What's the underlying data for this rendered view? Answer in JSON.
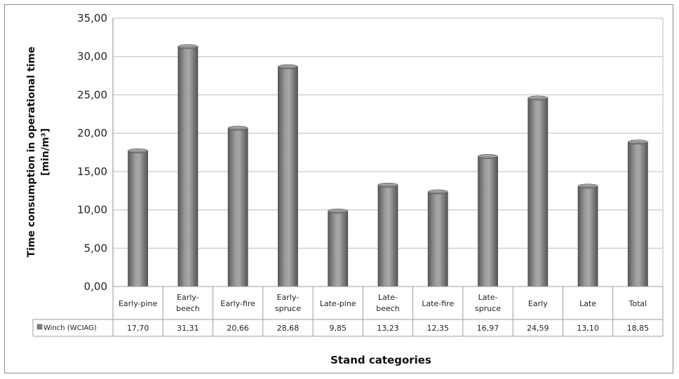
{
  "chart_data": {
    "type": "bar",
    "categories": [
      [
        "Early-pine"
      ],
      [
        "Early-",
        "beech"
      ],
      [
        "Early-fire"
      ],
      [
        "Early-",
        "spruce"
      ],
      [
        "Late-pine"
      ],
      [
        "Late-",
        "beech"
      ],
      [
        "Late-fire"
      ],
      [
        "Late-",
        "spruce"
      ],
      [
        "Early"
      ],
      [
        "Late"
      ],
      [
        "Total"
      ]
    ],
    "series": [
      {
        "name": "Winch (WCIAG)",
        "values": [
          17.7,
          31.31,
          20.66,
          28.68,
          9.85,
          13.23,
          12.35,
          16.97,
          24.59,
          13.1,
          18.85
        ],
        "labels": [
          "17,70",
          "31,31",
          "20,66",
          "28,68",
          "9,85",
          "13,23",
          "12,35",
          "16,97",
          "24,59",
          "13,10",
          "18,85"
        ]
      }
    ],
    "yticks": [
      "0,00",
      "5,00",
      "10,00",
      "15,00",
      "20,00",
      "25,00",
      "30,00",
      "35,00"
    ],
    "ylim": [
      0,
      35
    ],
    "ylabel_line1": "Time consumption in operational time",
    "ylabel_line2": "[min/m³]",
    "xlabel": "Stand categories",
    "grid": true,
    "legend": "data-table-left",
    "bar_color": "#7f7f7f"
  }
}
